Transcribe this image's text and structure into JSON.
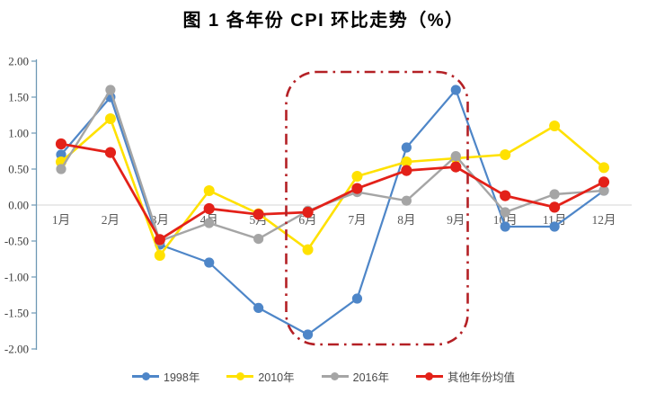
{
  "title": "图 1  各年份 CPI 环比走势（%）",
  "chart_data": {
    "type": "line",
    "categories": [
      "1月",
      "2月",
      "3月",
      "4月",
      "5月",
      "6月",
      "7月",
      "8月",
      "9月",
      "10月",
      "11月",
      "12月"
    ],
    "series": [
      {
        "name": "1998年",
        "color": "#4E86C8",
        "values": [
          0.7,
          1.5,
          -0.55,
          -0.8,
          -1.43,
          -1.8,
          -1.3,
          0.8,
          1.6,
          -0.3,
          -0.3,
          0.2
        ]
      },
      {
        "name": "2010年",
        "color": "#FFE100",
        "values": [
          0.6,
          1.2,
          -0.7,
          0.2,
          -0.12,
          -0.62,
          0.4,
          0.6,
          0.65,
          0.7,
          1.1,
          0.52
        ]
      },
      {
        "name": "2016年",
        "color": "#A5A5A5",
        "values": [
          0.5,
          1.6,
          -0.5,
          -0.25,
          -0.47,
          -0.08,
          0.18,
          0.06,
          0.68,
          -0.1,
          0.15,
          0.2
        ]
      },
      {
        "name": "其他年份均值",
        "color": "#E32119",
        "values": [
          0.85,
          0.73,
          -0.48,
          -0.05,
          -0.13,
          -0.1,
          0.23,
          0.48,
          0.53,
          0.13,
          -0.03,
          0.32
        ]
      }
    ],
    "ylim": [
      -2.0,
      2.0
    ],
    "y_ticks": [
      "2.00",
      "1.50",
      "1.00",
      "0.50",
      "0.00",
      "-0.50",
      "-1.00",
      "-1.50",
      "-2.00"
    ],
    "xlabel": "",
    "ylabel": "",
    "grid": "zero-line-only",
    "legend_position": "bottom",
    "axis_color": "#6D98B5",
    "gridline_color": "#D6D6D6"
  },
  "annotation": {
    "highlight_box": {
      "from_month": "6月",
      "to_month": "9月",
      "style": "dash-dot rounded rectangle",
      "color": "#B42025"
    }
  }
}
